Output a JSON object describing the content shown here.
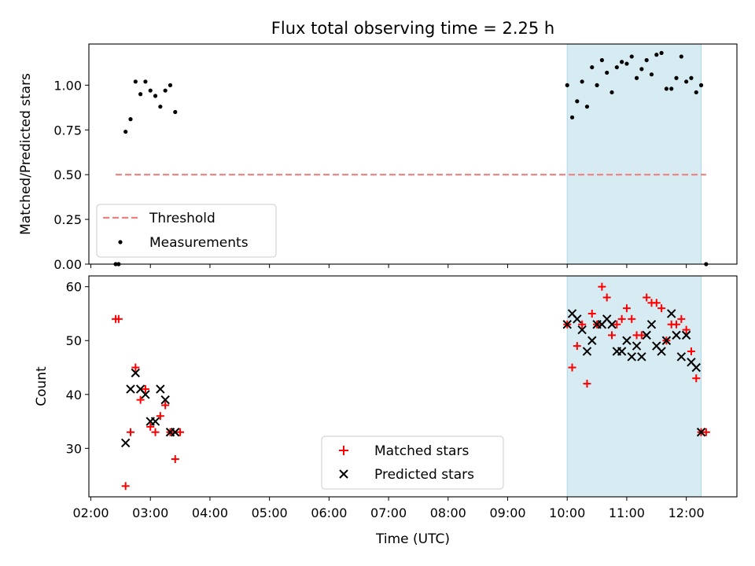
{
  "chart_data": [
    {
      "type": "scatter",
      "title": "Flux total observing time = 2.25 h",
      "xlabel": "",
      "ylabel": "Matched/Predicted stars",
      "ylim": [
        0,
        1.23
      ],
      "yticks": [
        "0.00",
        "0.25",
        "0.50",
        "0.75",
        "1.00"
      ],
      "ytick_values": [
        0,
        0.25,
        0.5,
        0.75,
        1.0
      ],
      "xlim": [
        "01:58",
        "12:51"
      ],
      "shaded_range": [
        "10:00",
        "12:15"
      ],
      "shaded_color": "#add8e6",
      "threshold": {
        "name": "Threshold",
        "value": 0.5,
        "x_start": "02:25",
        "x_end": "12:20",
        "color": "#f08080"
      },
      "series": [
        {
          "name": "Measurements",
          "color": "#000000",
          "x": [
            "02:25",
            "02:28",
            "02:35",
            "02:40",
            "02:45",
            "02:50",
            "02:55",
            "03:00",
            "03:05",
            "03:10",
            "03:15",
            "03:20",
            "03:25",
            "10:00",
            "10:05",
            "10:10",
            "10:15",
            "10:20",
            "10:25",
            "10:30",
            "10:35",
            "10:40",
            "10:45",
            "10:50",
            "10:55",
            "11:00",
            "11:05",
            "11:10",
            "11:15",
            "11:20",
            "11:25",
            "11:30",
            "11:35",
            "11:40",
            "11:45",
            "11:50",
            "11:55",
            "12:00",
            "12:05",
            "12:10",
            "12:15",
            "12:20"
          ],
          "y": [
            0,
            0,
            0.74,
            0.81,
            1.02,
            0.95,
            1.02,
            0.97,
            0.94,
            0.88,
            0.97,
            1.0,
            0.85,
            1.0,
            0.82,
            0.91,
            1.02,
            0.88,
            1.1,
            1.0,
            1.14,
            1.07,
            0.96,
            1.1,
            1.13,
            1.12,
            1.16,
            1.04,
            1.09,
            1.14,
            1.06,
            1.17,
            1.18,
            0.98,
            0.98,
            1.04,
            1.16,
            1.02,
            1.04,
            0.96,
            1.0,
            0
          ]
        }
      ]
    },
    {
      "type": "scatter",
      "title": "",
      "xlabel": "Time (UTC)",
      "ylabel": "Count",
      "ylim": [
        21,
        62
      ],
      "yticks": [
        "30",
        "40",
        "50",
        "60"
      ],
      "ytick_values": [
        30,
        40,
        50,
        60
      ],
      "xlim": [
        "01:58",
        "12:51"
      ],
      "xticks": [
        "02:00",
        "03:00",
        "04:00",
        "05:00",
        "06:00",
        "07:00",
        "08:00",
        "09:00",
        "10:00",
        "11:00",
        "12:00"
      ],
      "shaded_range": [
        "10:00",
        "12:15"
      ],
      "shaded_color": "#add8e6",
      "series": [
        {
          "name": "Matched stars",
          "marker": "plus",
          "color": "#ff0000",
          "x": [
            "02:25",
            "02:28",
            "02:35",
            "02:40",
            "02:45",
            "02:50",
            "02:55",
            "03:00",
            "03:05",
            "03:10",
            "03:15",
            "03:20",
            "03:25",
            "03:30",
            "10:00",
            "10:05",
            "10:10",
            "10:15",
            "10:20",
            "10:25",
            "10:30",
            "10:35",
            "10:40",
            "10:45",
            "10:50",
            "10:55",
            "11:00",
            "11:05",
            "11:10",
            "11:15",
            "11:20",
            "11:25",
            "11:30",
            "11:35",
            "11:40",
            "11:45",
            "11:50",
            "11:55",
            "12:00",
            "12:05",
            "12:10",
            "12:15",
            "12:20"
          ],
          "y": [
            54,
            54,
            23,
            33,
            45,
            39,
            41,
            34,
            33,
            36,
            38,
            33,
            28,
            33,
            53,
            45,
            49,
            53,
            42,
            55,
            53,
            60,
            58,
            51,
            53,
            54,
            56,
            54,
            51,
            51,
            58,
            57,
            57,
            56,
            50,
            53,
            53,
            54,
            52,
            48,
            43,
            33,
            33
          ]
        },
        {
          "name": "Predicted stars",
          "marker": "x",
          "color": "#000000",
          "x": [
            "02:35",
            "02:40",
            "02:45",
            "02:50",
            "02:55",
            "03:00",
            "03:05",
            "03:10",
            "03:15",
            "03:20",
            "03:25",
            "10:00",
            "10:05",
            "10:10",
            "10:15",
            "10:20",
            "10:25",
            "10:30",
            "10:35",
            "10:40",
            "10:45",
            "10:50",
            "10:55",
            "11:00",
            "11:05",
            "11:10",
            "11:15",
            "11:20",
            "11:25",
            "11:30",
            "11:35",
            "11:40",
            "11:45",
            "11:50",
            "11:55",
            "12:00",
            "12:05",
            "12:10",
            "12:15"
          ],
          "y": [
            31,
            41,
            44,
            41,
            40,
            35,
            35,
            41,
            39,
            33,
            33,
            53,
            55,
            54,
            52,
            48,
            50,
            53,
            53,
            54,
            53,
            48,
            48,
            50,
            47,
            49,
            47,
            51,
            53,
            49,
            48,
            50,
            55,
            51,
            47,
            51,
            46,
            45,
            33
          ]
        }
      ]
    }
  ]
}
